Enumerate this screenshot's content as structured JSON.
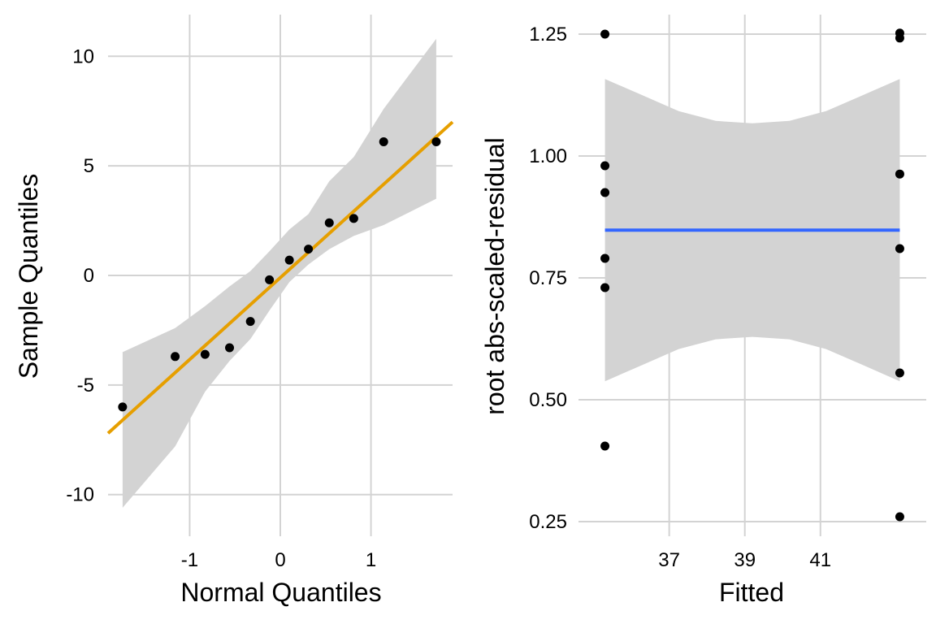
{
  "chart_data": [
    {
      "type": "scatter",
      "title": "",
      "xlabel": "Normal Quantiles",
      "ylabel": "Sample Quantiles",
      "xlim": [
        -1.9,
        1.9
      ],
      "ylim": [
        -11.9,
        11.9
      ],
      "x_ticks": [
        -1,
        0,
        1
      ],
      "x_tick_labels": [
        "-1",
        "0",
        "1"
      ],
      "y_ticks": [
        -10,
        -5,
        0,
        5,
        10
      ],
      "y_tick_labels": [
        "-10",
        "-5",
        "0",
        "5",
        "10"
      ],
      "grid": true,
      "points": [
        {
          "x": -1.74,
          "y": -6.0
        },
        {
          "x": -1.16,
          "y": -3.7
        },
        {
          "x": -0.83,
          "y": -3.6
        },
        {
          "x": -0.56,
          "y": -3.3
        },
        {
          "x": -0.33,
          "y": -2.1
        },
        {
          "x": -0.12,
          "y": -0.2
        },
        {
          "x": 0.1,
          "y": 0.7
        },
        {
          "x": 0.31,
          "y": 1.2
        },
        {
          "x": 0.54,
          "y": 2.4
        },
        {
          "x": 0.81,
          "y": 2.6
        },
        {
          "x": 1.14,
          "y": 6.1
        },
        {
          "x": 1.72,
          "y": 6.1
        }
      ],
      "reference_line": {
        "x": [
          -1.9,
          1.9
        ],
        "y": [
          -7.2,
          7.0
        ],
        "color": "#e69f00"
      },
      "confidence_band": {
        "x": [
          -1.74,
          -1.16,
          -0.83,
          -0.56,
          -0.33,
          -0.12,
          0.1,
          0.31,
          0.54,
          0.81,
          1.14,
          1.72
        ],
        "upper": [
          -3.5,
          -2.4,
          -1.4,
          -0.5,
          0.2,
          1.1,
          2.1,
          2.8,
          4.3,
          5.4,
          7.6,
          10.8
        ],
        "lower": [
          -10.6,
          -7.8,
          -5.3,
          -3.9,
          -2.9,
          -1.6,
          -0.3,
          0.5,
          1.2,
          1.8,
          2.3,
          3.5
        ],
        "color": "#d3d3d3"
      }
    },
    {
      "type": "scatter",
      "title": "",
      "xlabel": "Fitted",
      "ylabel": "root abs-scaled-residual",
      "xlim": [
        34.6,
        43.8
      ],
      "ylim": [
        0.22,
        1.29
      ],
      "x_ticks": [
        37,
        39,
        41
      ],
      "x_tick_labels": [
        "37",
        "39",
        "41"
      ],
      "y_ticks": [
        0.25,
        0.5,
        0.75,
        1.0,
        1.25
      ],
      "y_tick_labels": [
        "0.25",
        "0.50",
        "0.75",
        "1.00",
        "1.25"
      ],
      "grid": true,
      "points": [
        {
          "x": 35.3,
          "y": 1.25
        },
        {
          "x": 35.3,
          "y": 0.98
        },
        {
          "x": 35.3,
          "y": 0.925
        },
        {
          "x": 35.3,
          "y": 0.79
        },
        {
          "x": 35.3,
          "y": 0.73
        },
        {
          "x": 35.3,
          "y": 0.405
        },
        {
          "x": 43.1,
          "y": 1.252
        },
        {
          "x": 43.1,
          "y": 1.242
        },
        {
          "x": 43.1,
          "y": 0.963
        },
        {
          "x": 43.1,
          "y": 0.81
        },
        {
          "x": 43.1,
          "y": 0.555
        },
        {
          "x": 43.1,
          "y": 0.26
        }
      ],
      "fit_line": {
        "x": [
          35.3,
          43.1
        ],
        "y": [
          0.848,
          0.848
        ],
        "color": "#3366ff"
      },
      "confidence_band": {
        "x": [
          35.3,
          36.28,
          37.25,
          38.23,
          39.2,
          40.18,
          41.15,
          42.13,
          43.1
        ],
        "upper": [
          1.158,
          1.125,
          1.092,
          1.072,
          1.067,
          1.072,
          1.092,
          1.125,
          1.158
        ],
        "lower": [
          0.538,
          0.571,
          0.604,
          0.624,
          0.629,
          0.624,
          0.604,
          0.571,
          0.538
        ],
        "color": "#d3d3d3"
      }
    }
  ]
}
